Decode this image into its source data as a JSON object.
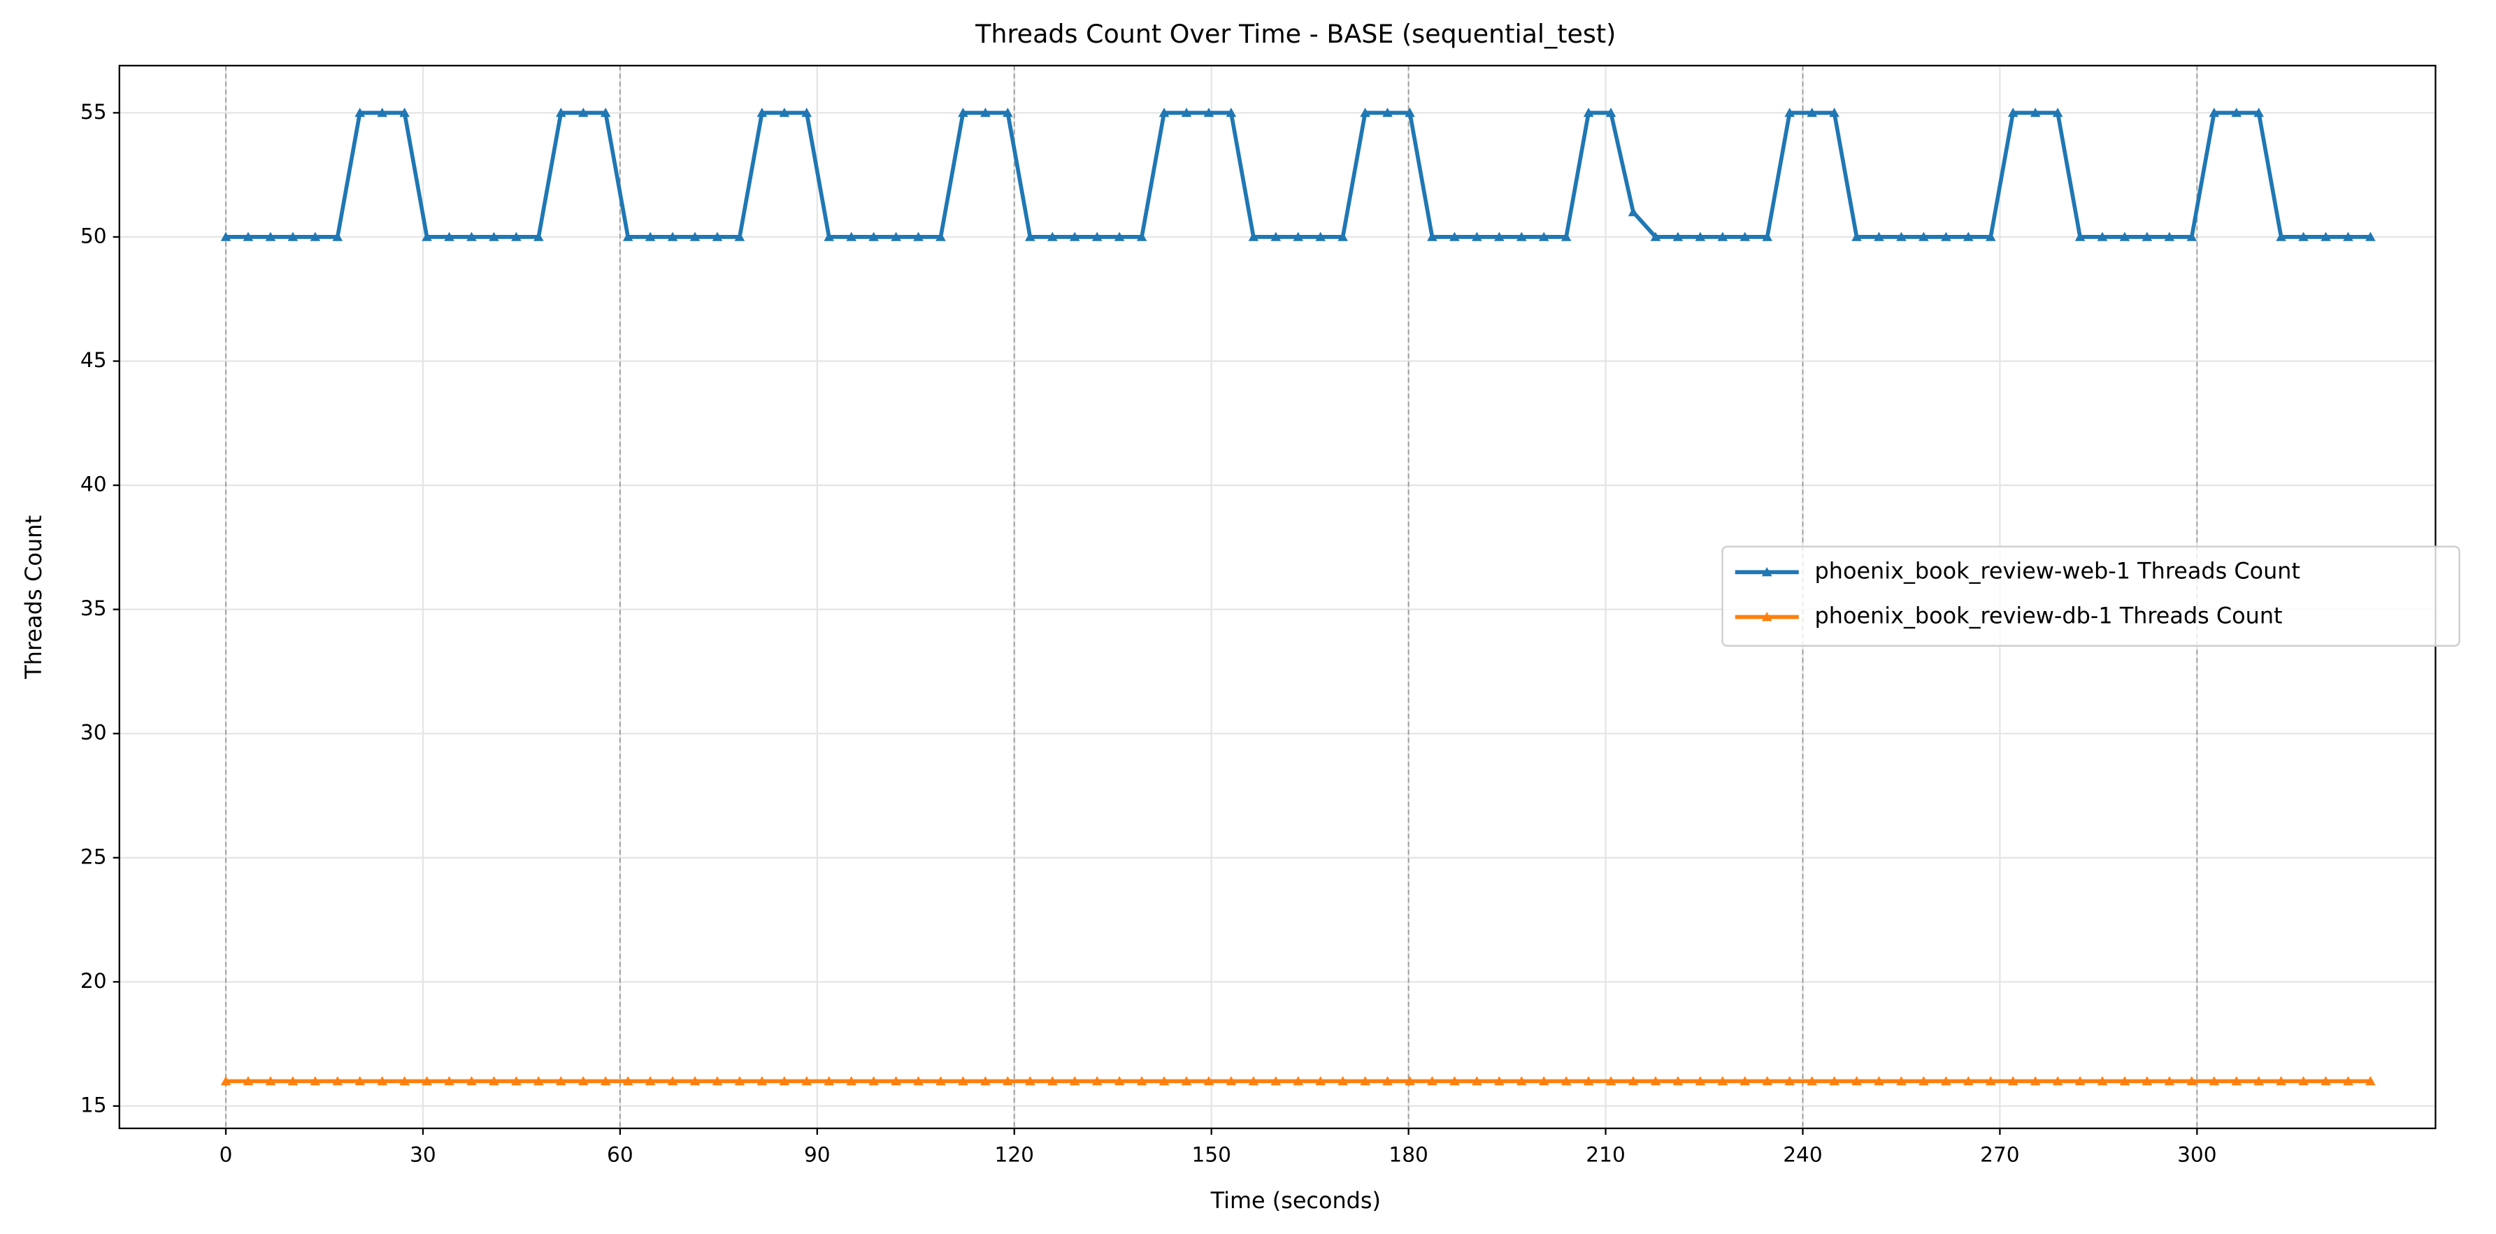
{
  "chart_data": {
    "type": "line",
    "title": "Threads Count Over Time - BASE (sequential_test)",
    "x_label": "Time (seconds)",
    "y_label": "Threads Count",
    "x": [
      0,
      3.4,
      6.8,
      10.2,
      13.6,
      17,
      20.4,
      23.8,
      27.2,
      30.6,
      34,
      37.4,
      40.8,
      44.2,
      47.6,
      51,
      54.4,
      57.8,
      61.2,
      64.6,
      68,
      71.4,
      74.8,
      78.2,
      81.6,
      85,
      88.4,
      91.8,
      95.2,
      98.6,
      102,
      105.4,
      108.8,
      112.2,
      115.6,
      119,
      122.4,
      125.8,
      129.2,
      132.6,
      136,
      139.4,
      142.8,
      146.2,
      149.6,
      153,
      156.4,
      159.8,
      163.2,
      166.6,
      170,
      173.4,
      176.8,
      180.2,
      183.6,
      187,
      190.4,
      193.8,
      197.2,
      200.6,
      204,
      207.4,
      210.8,
      214.2,
      217.6,
      221,
      224.4,
      227.8,
      231.2,
      234.6,
      238,
      241.4,
      244.8,
      248.2,
      251.6,
      255,
      258.4,
      261.8,
      265.2,
      268.6,
      272,
      275.4,
      278.8,
      282.2,
      285.6,
      289,
      292.4,
      295.8,
      299.2,
      302.6,
      306,
      309.4,
      312.8,
      316.2,
      319.6,
      323,
      326.4
    ],
    "series": [
      {
        "name": "phoenix_book_review-web-1 Threads Count",
        "color": "#1f77b4",
        "values": [
          50,
          50,
          50,
          50,
          50,
          50,
          55,
          55,
          55,
          50,
          50,
          50,
          50,
          50,
          50,
          55,
          55,
          55,
          50,
          50,
          50,
          50,
          50,
          50,
          55,
          55,
          55,
          50,
          50,
          50,
          50,
          50,
          50,
          55,
          55,
          55,
          50,
          50,
          50,
          50,
          50,
          50,
          55,
          55,
          55,
          55,
          50,
          50,
          50,
          50,
          50,
          55,
          55,
          55,
          50,
          50,
          50,
          50,
          50,
          50,
          50,
          55,
          55,
          51,
          50,
          50,
          50,
          50,
          50,
          50,
          55,
          55,
          55,
          50,
          50,
          50,
          50,
          50,
          50,
          50,
          55,
          55,
          55,
          50,
          50,
          50,
          50,
          50,
          50,
          55,
          55,
          55,
          50,
          50,
          50,
          50,
          50
        ]
      },
      {
        "name": "phoenix_book_review-db-1 Threads Count",
        "color": "#ff7f0e",
        "values": [
          16,
          16,
          16,
          16,
          16,
          16,
          16,
          16,
          16,
          16,
          16,
          16,
          16,
          16,
          16,
          16,
          16,
          16,
          16,
          16,
          16,
          16,
          16,
          16,
          16,
          16,
          16,
          16,
          16,
          16,
          16,
          16,
          16,
          16,
          16,
          16,
          16,
          16,
          16,
          16,
          16,
          16,
          16,
          16,
          16,
          16,
          16,
          16,
          16,
          16,
          16,
          16,
          16,
          16,
          16,
          16,
          16,
          16,
          16,
          16,
          16,
          16,
          16,
          16,
          16,
          16,
          16,
          16,
          16,
          16,
          16,
          16,
          16,
          16,
          16,
          16,
          16,
          16,
          16,
          16,
          16,
          16,
          16,
          16,
          16,
          16,
          16,
          16,
          16,
          16,
          16,
          16,
          16,
          16,
          16,
          16,
          16
        ]
      }
    ],
    "xlim": [
      -16.2,
      336.3
    ],
    "ylim": [
      14.1,
      56.9
    ],
    "xticks": [
      0,
      30,
      60,
      90,
      120,
      150,
      180,
      210,
      240,
      270,
      300
    ],
    "yticks": [
      15,
      20,
      25,
      30,
      35,
      40,
      45,
      50,
      55
    ],
    "vlines": [
      0,
      60,
      120,
      180,
      240,
      300
    ],
    "grid": true,
    "legend": "center right",
    "marker": "triangle"
  }
}
